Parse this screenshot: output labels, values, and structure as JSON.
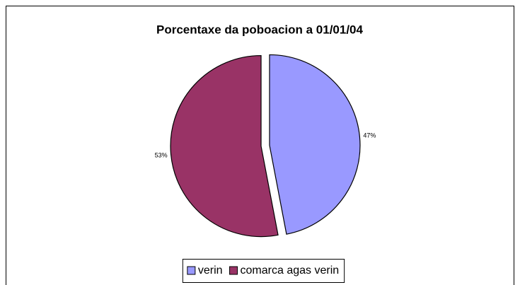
{
  "chart_data": {
    "type": "pie",
    "title": "Porcentaxe da poboacion a 01/01/04",
    "categories": [
      "verin",
      "comarca agas verin"
    ],
    "values": [
      47,
      53
    ],
    "value_labels": [
      "47%",
      "53%"
    ],
    "colors": [
      "#9999ff",
      "#993366"
    ],
    "legend": "bottom"
  }
}
